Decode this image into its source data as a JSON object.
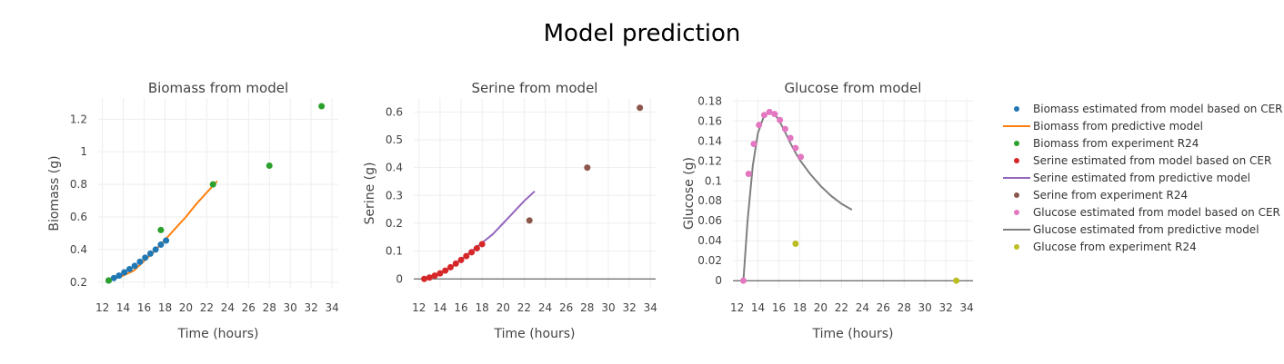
{
  "title": "Model prediction",
  "chart_data": [
    {
      "type": "scatter",
      "title": "Biomass from model",
      "xlabel": "Time (hours)",
      "ylabel": "Biomass (g)",
      "xlim": [
        11.6,
        34.6
      ],
      "ylim": [
        0.16,
        1.33
      ],
      "xticks": [
        12,
        14,
        16,
        18,
        20,
        22,
        24,
        26,
        28,
        30,
        32,
        34
      ],
      "xtick_labels": [
        "12",
        "14",
        "16",
        "18",
        "20",
        "22",
        "24",
        "26",
        "28",
        "30",
        "32",
        "34"
      ],
      "yticks": [
        0.2,
        0.4,
        0.6,
        0.8,
        1,
        1.2
      ],
      "ytick_labels": [
        "0.2",
        "0.4",
        "0.6",
        "0.8",
        "1",
        "1.2"
      ],
      "grid": true,
      "series": [
        {
          "name": "Biomass estimated from model based on CER",
          "mode": "markers",
          "color": "#1f77b4",
          "x": [
            12.6,
            13.1,
            13.6,
            14.1,
            14.6,
            15.1,
            15.6,
            16.1,
            16.6,
            17.1,
            17.6,
            18.1
          ],
          "y": [
            0.21,
            0.225,
            0.24,
            0.26,
            0.28,
            0.3,
            0.325,
            0.35,
            0.375,
            0.4,
            0.43,
            0.455
          ]
        },
        {
          "name": "Biomass from predictive model",
          "mode": "lines",
          "color": "#ff7f0e",
          "x": [
            12.6,
            14,
            15,
            16,
            17,
            18,
            19,
            20,
            21,
            22,
            23
          ],
          "y": [
            0.21,
            0.24,
            0.27,
            0.33,
            0.39,
            0.46,
            0.53,
            0.6,
            0.68,
            0.75,
            0.82
          ]
        },
        {
          "name": "Biomass from experiment R24",
          "mode": "markers",
          "color": "#2ca02c",
          "x": [
            12.6,
            17.6,
            22.6,
            28.0,
            33.0
          ],
          "y": [
            0.21,
            0.52,
            0.8,
            0.915,
            1.28
          ]
        }
      ]
    },
    {
      "type": "scatter",
      "title": "Serine from model",
      "xlabel": "Time (hours)",
      "ylabel": "Serine (g)",
      "xlim": [
        11.5,
        34.5
      ],
      "ylim": [
        -0.035,
        0.65
      ],
      "xticks": [
        12,
        14,
        16,
        18,
        20,
        22,
        24,
        26,
        28,
        30,
        32,
        34
      ],
      "xtick_labels": [
        "12",
        "14",
        "16",
        "18",
        "20",
        "22",
        "24",
        "26",
        "28",
        "30",
        "32",
        "34"
      ],
      "yticks": [
        0,
        0.1,
        0.2,
        0.3,
        0.4,
        0.5,
        0.6
      ],
      "ytick_labels": [
        "0",
        "0.1",
        "0.2",
        "0.3",
        "0.4",
        "0.5",
        "0.6"
      ],
      "grid": true,
      "zeroline": true,
      "series": [
        {
          "name": "Serine estimated from model based on CER",
          "mode": "markers",
          "color": "#d62728",
          "x": [
            12.5,
            13.0,
            13.5,
            14.0,
            14.5,
            15.0,
            15.5,
            16.0,
            16.5,
            17.0,
            17.5,
            18.0
          ],
          "y": [
            0.0,
            0.005,
            0.012,
            0.02,
            0.03,
            0.042,
            0.055,
            0.068,
            0.082,
            0.096,
            0.11,
            0.125
          ]
        },
        {
          "name": "Serine estimated from predictive model",
          "mode": "lines",
          "color": "#9467bd",
          "x": [
            12.5,
            14,
            15,
            16,
            17,
            18,
            19,
            20,
            21,
            22,
            23
          ],
          "y": [
            0.0,
            0.02,
            0.04,
            0.07,
            0.1,
            0.13,
            0.16,
            0.2,
            0.24,
            0.28,
            0.315
          ]
        },
        {
          "name": "Serine from experiment R24",
          "mode": "markers",
          "color": "#8c564b",
          "x": [
            22.5,
            28.0,
            33.0
          ],
          "y": [
            0.21,
            0.4,
            0.615
          ]
        }
      ]
    },
    {
      "type": "scatter",
      "title": "Glucose from model",
      "xlabel": "Time (hours)",
      "ylabel": "Glucose (g)",
      "xlim": [
        11.6,
        34.6
      ],
      "ylim": [
        -0.008,
        0.183
      ],
      "xticks": [
        12,
        14,
        16,
        18,
        20,
        22,
        24,
        26,
        28,
        30,
        32,
        34
      ],
      "xtick_labels": [
        "12",
        "14",
        "16",
        "18",
        "20",
        "22",
        "24",
        "26",
        "28",
        "30",
        "32",
        "34"
      ],
      "yticks": [
        0,
        0.02,
        0.04,
        0.06,
        0.08,
        0.1,
        0.12,
        0.14,
        0.16,
        0.18
      ],
      "ytick_labels": [
        "0",
        "0.02",
        "0.04",
        "0.06",
        "0.08",
        "0.1",
        "0.12",
        "0.14",
        "0.16",
        "0.18"
      ],
      "grid": true,
      "zeroline": true,
      "series": [
        {
          "name": "Glucose estimated from model based on CER",
          "mode": "markers",
          "color": "#e377c2",
          "x": [
            12.6,
            13.1,
            13.6,
            14.1,
            14.6,
            15.1,
            15.6,
            16.1,
            16.6,
            17.1,
            17.6,
            18.1
          ],
          "y": [
            0.0,
            0.107,
            0.137,
            0.156,
            0.166,
            0.169,
            0.167,
            0.161,
            0.152,
            0.143,
            0.133,
            0.124
          ]
        },
        {
          "name": "Glucose estimated from predictive model",
          "mode": "lines",
          "color": "#7f7f7f",
          "x": [
            12.6,
            13.0,
            13.5,
            14.0,
            14.5,
            15.0,
            15.5,
            16.0,
            16.5,
            17.0,
            17.5,
            18.0,
            18.5,
            19.0,
            20.0,
            21.0,
            22.0,
            23.0
          ],
          "y": [
            0.0,
            0.06,
            0.115,
            0.148,
            0.163,
            0.169,
            0.168,
            0.161,
            0.151,
            0.14,
            0.13,
            0.121,
            0.114,
            0.107,
            0.095,
            0.085,
            0.077,
            0.071
          ]
        },
        {
          "name": "Glucose from experiment R24",
          "mode": "markers",
          "color": "#bcbd22",
          "x": [
            17.6,
            33.0
          ],
          "y": [
            0.037,
            0.0
          ]
        }
      ]
    }
  ]
}
